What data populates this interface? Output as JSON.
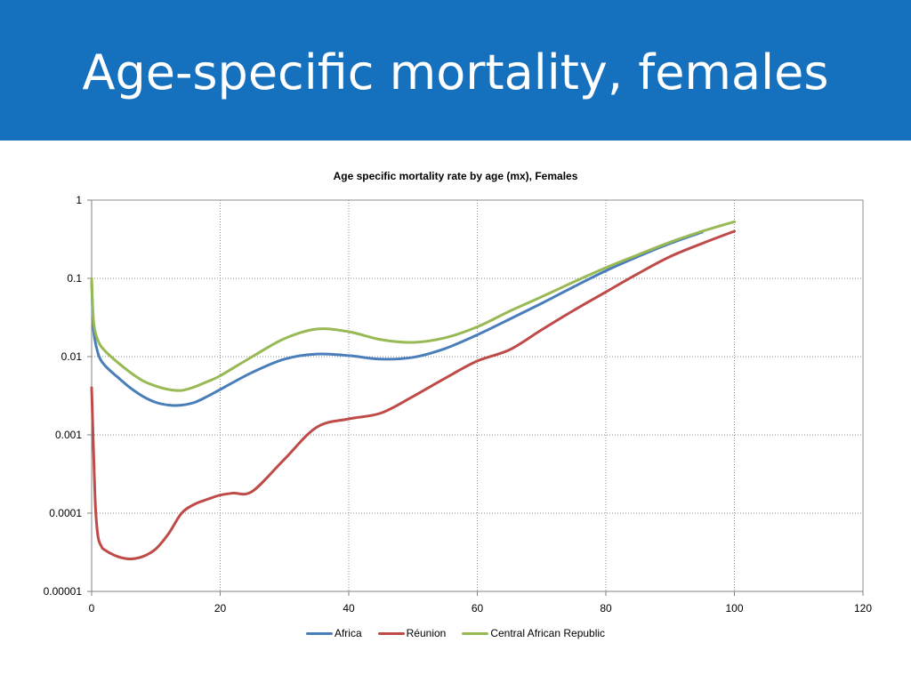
{
  "slide": {
    "title": "Age-specific mortality, females"
  },
  "chart_data": {
    "type": "line",
    "title": "Age specific mortality rate by age (mx), Females",
    "xlabel": "",
    "ylabel": "",
    "x_scale": "linear",
    "y_scale": "log",
    "xlim": [
      0,
      120
    ],
    "ylim": [
      1e-05,
      1
    ],
    "x_ticks": [
      "0",
      "20",
      "40",
      "60",
      "80",
      "100",
      "120"
    ],
    "y_ticks": [
      "0.00001",
      "0.0001",
      "0.001",
      "0.01",
      "0.1",
      "1"
    ],
    "grid": true,
    "legend_position": "bottom",
    "series": [
      {
        "name": "Africa",
        "color": "#4a7ebb",
        "x": [
          0,
          0.3,
          1,
          2,
          4,
          6,
          8,
          10,
          12,
          14,
          16,
          18,
          20,
          25,
          30,
          35,
          40,
          45,
          50,
          55,
          60,
          65,
          70,
          75,
          80,
          85,
          90,
          95
        ],
        "y": [
          0.09,
          0.022,
          0.011,
          0.0078,
          0.0055,
          0.004,
          0.0031,
          0.0026,
          0.0024,
          0.0024,
          0.0026,
          0.0031,
          0.0038,
          0.0063,
          0.0093,
          0.0108,
          0.0103,
          0.0093,
          0.0098,
          0.0127,
          0.019,
          0.03,
          0.048,
          0.078,
          0.125,
          0.19,
          0.28,
          0.39
        ]
      },
      {
        "name": "Réunion",
        "color": "#be4b48",
        "x": [
          0,
          0.3,
          0.6,
          1,
          1.5,
          2,
          4,
          6,
          8,
          10,
          12,
          14,
          16,
          18,
          20,
          22,
          25,
          30,
          35,
          40,
          45,
          50,
          55,
          60,
          65,
          70,
          75,
          80,
          85,
          90,
          95,
          100
        ],
        "y": [
          0.004,
          0.0006,
          0.00012,
          5e-05,
          3.8e-05,
          3.4e-05,
          2.8e-05,
          2.6e-05,
          2.8e-05,
          3.5e-05,
          5.5e-05,
          0.0001,
          0.00013,
          0.00015,
          0.00017,
          0.00018,
          0.00019,
          0.00049,
          0.00125,
          0.0016,
          0.0019,
          0.0031,
          0.0053,
          0.0088,
          0.0122,
          0.022,
          0.039,
          0.067,
          0.115,
          0.19,
          0.28,
          0.4
        ]
      },
      {
        "name": "Central African Republic",
        "color": "#98b954",
        "x": [
          0,
          0.3,
          1,
          2,
          4,
          6,
          8,
          10,
          12,
          14,
          16,
          18,
          20,
          25,
          30,
          35,
          40,
          45,
          50,
          55,
          60,
          65,
          70,
          75,
          80,
          85,
          90,
          95,
          100
        ],
        "y": [
          0.1,
          0.028,
          0.016,
          0.012,
          0.0085,
          0.0063,
          0.0049,
          0.0042,
          0.0038,
          0.0037,
          0.0041,
          0.0048,
          0.0057,
          0.01,
          0.017,
          0.0225,
          0.0208,
          0.0165,
          0.0152,
          0.0174,
          0.024,
          0.038,
          0.058,
          0.09,
          0.137,
          0.2,
          0.29,
          0.4,
          0.53
        ]
      }
    ]
  }
}
